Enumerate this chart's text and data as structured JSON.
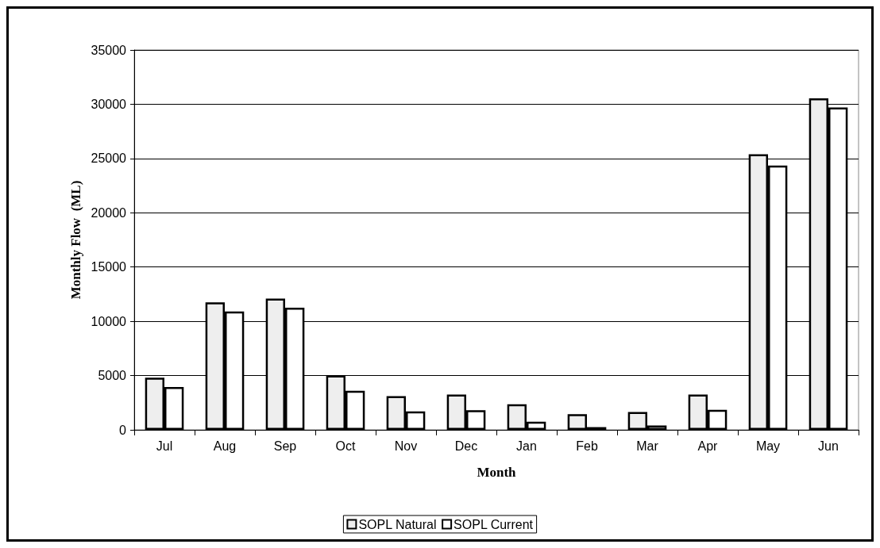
{
  "chart_data": {
    "type": "bar",
    "xlabel": "Month",
    "ylabel": "Monthly Flow  (ML)",
    "categories": [
      "Jul",
      "Aug",
      "Sep",
      "Oct",
      "Nov",
      "Dec",
      "Jan",
      "Feb",
      "Mar",
      "Apr",
      "May",
      "Jun"
    ],
    "series": [
      {
        "name": "SOPL Natural",
        "color": "#eeeeee",
        "values": [
          4800,
          11750,
          12100,
          5000,
          3100,
          3250,
          2350,
          1450,
          1650,
          3250,
          25400,
          30550
        ]
      },
      {
        "name": "SOPL Current",
        "color": "#ffffff",
        "values": [
          3950,
          10900,
          11250,
          3600,
          1700,
          1800,
          750,
          250,
          400,
          1850,
          24350,
          29700
        ]
      }
    ],
    "ylim": [
      0,
      35000
    ],
    "yticks": [
      0,
      5000,
      10000,
      15000,
      20000,
      25000,
      30000,
      35000
    ],
    "grid": "y",
    "legend": "bottom"
  }
}
